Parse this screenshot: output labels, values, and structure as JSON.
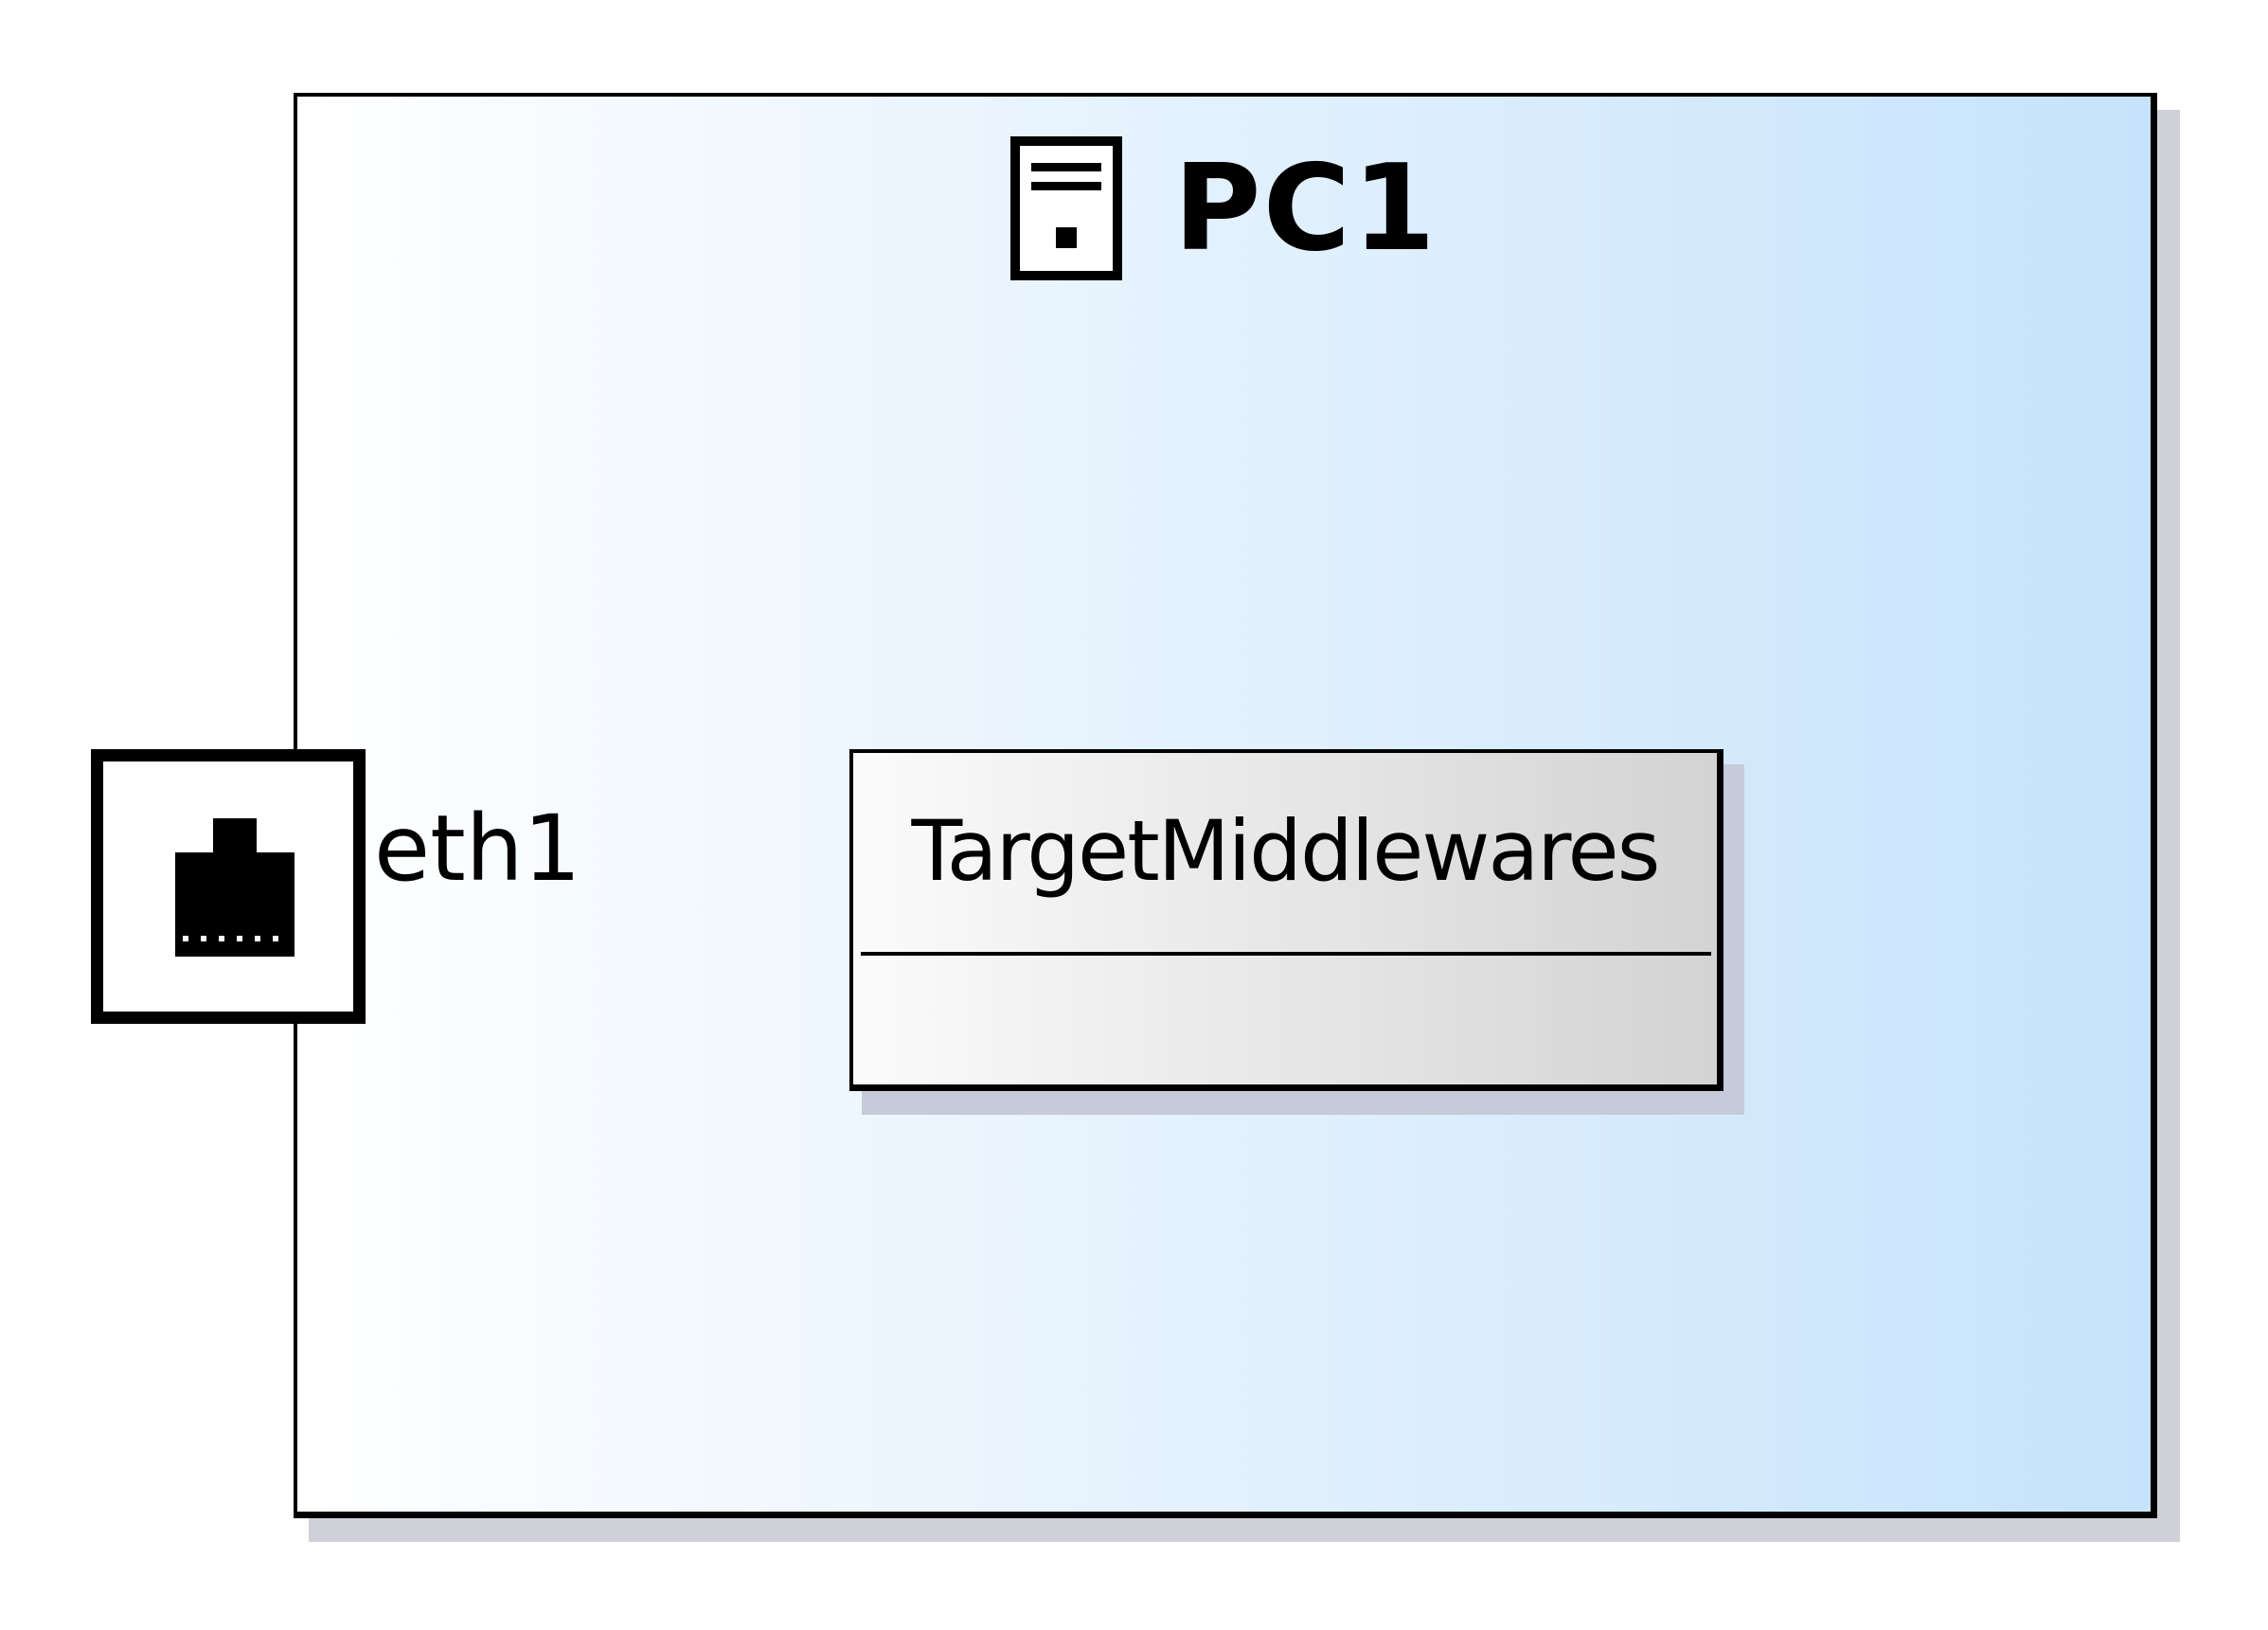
{
  "node": {
    "title": "PC1",
    "icon": "server-icon",
    "gradient_colors": [
      "#ffffff",
      "#c6e3fb"
    ]
  },
  "port": {
    "label": "eth1",
    "icon": "ethernet-port-icon"
  },
  "component": {
    "title": "TargetMiddlewares",
    "gradient_colors": [
      "#fbfbfb",
      "#d3d3d3"
    ]
  }
}
